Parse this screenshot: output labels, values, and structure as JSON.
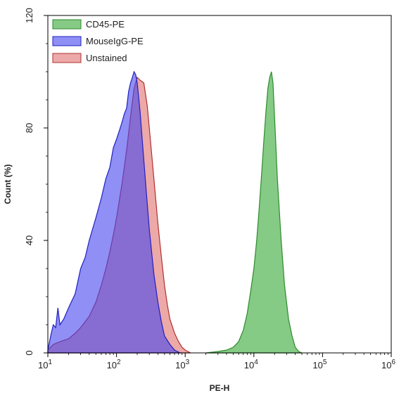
{
  "chart_data": {
    "type": "area",
    "xlabel": "PE-H",
    "ylabel": "Count  (%)",
    "xscale": "log",
    "xlim": [
      10,
      1000000
    ],
    "ylim": [
      0,
      120
    ],
    "x_ticks": [
      {
        "base": "10",
        "exp": "1"
      },
      {
        "base": "10",
        "exp": "2"
      },
      {
        "base": "10",
        "exp": "3"
      },
      {
        "base": "10",
        "exp": "4"
      },
      {
        "base": "10",
        "exp": "5"
      },
      {
        "base": "10",
        "exp": "6"
      }
    ],
    "y_ticks": [
      "0",
      "40",
      "80",
      "120"
    ],
    "y_tick_values": [
      0,
      40,
      80,
      120
    ],
    "x_tick_values": [
      10,
      100,
      1000,
      10000,
      100000,
      1000000
    ],
    "legend_position": "top-left",
    "series": [
      {
        "name": "CD45-PE",
        "fill": "#5cb85c",
        "fill_opacity": 0.75,
        "stroke": "#2e8b2e",
        "x": [
          2000,
          3000,
          4000,
          5000,
          6000,
          7000,
          8000,
          9000,
          10000,
          11000,
          12000,
          13000,
          14000,
          15000,
          16000,
          17000,
          18000,
          19000,
          20000,
          22000,
          25000,
          28000,
          32000,
          36000,
          40000,
          45000,
          50000
        ],
        "y": [
          0,
          0.5,
          1,
          2,
          4,
          8,
          14,
          22,
          30,
          40,
          52,
          64,
          76,
          86,
          94,
          98,
          100,
          96,
          84,
          62,
          40,
          24,
          12,
          6,
          2,
          0.5,
          0
        ]
      },
      {
        "name": "MouseIgG-PE",
        "fill": "#4444ee",
        "fill_opacity": 0.6,
        "stroke": "#2020c0",
        "x": [
          10,
          11,
          12,
          13,
          14,
          15,
          17,
          20,
          25,
          30,
          35,
          40,
          50,
          60,
          70,
          80,
          90,
          100,
          110,
          120,
          130,
          140,
          150,
          160,
          170,
          180,
          190,
          200,
          220,
          240,
          270,
          300,
          350,
          400,
          450,
          500,
          600,
          700,
          850
        ],
        "y": [
          1,
          6,
          10,
          9,
          16,
          10,
          12,
          16,
          21,
          30,
          34,
          40,
          48,
          55,
          62,
          66,
          73,
          76,
          79,
          82,
          85,
          87,
          93,
          96,
          98,
          100,
          99,
          96,
          86,
          74,
          58,
          44,
          28,
          18,
          11,
          6,
          3,
          1,
          0
        ]
      },
      {
        "name": "Unstained",
        "fill": "#d9534f",
        "fill_opacity": 0.5,
        "stroke": "#b03030",
        "x": [
          10,
          12,
          15,
          20,
          25,
          30,
          40,
          50,
          60,
          70,
          80,
          90,
          100,
          120,
          140,
          160,
          180,
          200,
          220,
          250,
          280,
          300,
          350,
          400,
          450,
          500,
          550,
          600,
          700,
          800,
          900,
          1000,
          1200
        ],
        "y": [
          1,
          3,
          4,
          5,
          7,
          9,
          13,
          18,
          24,
          30,
          36,
          42,
          48,
          60,
          72,
          84,
          94,
          98,
          97,
          96,
          88,
          80,
          62,
          46,
          34,
          24,
          17,
          12,
          7,
          4,
          2,
          1,
          0
        ]
      }
    ]
  }
}
